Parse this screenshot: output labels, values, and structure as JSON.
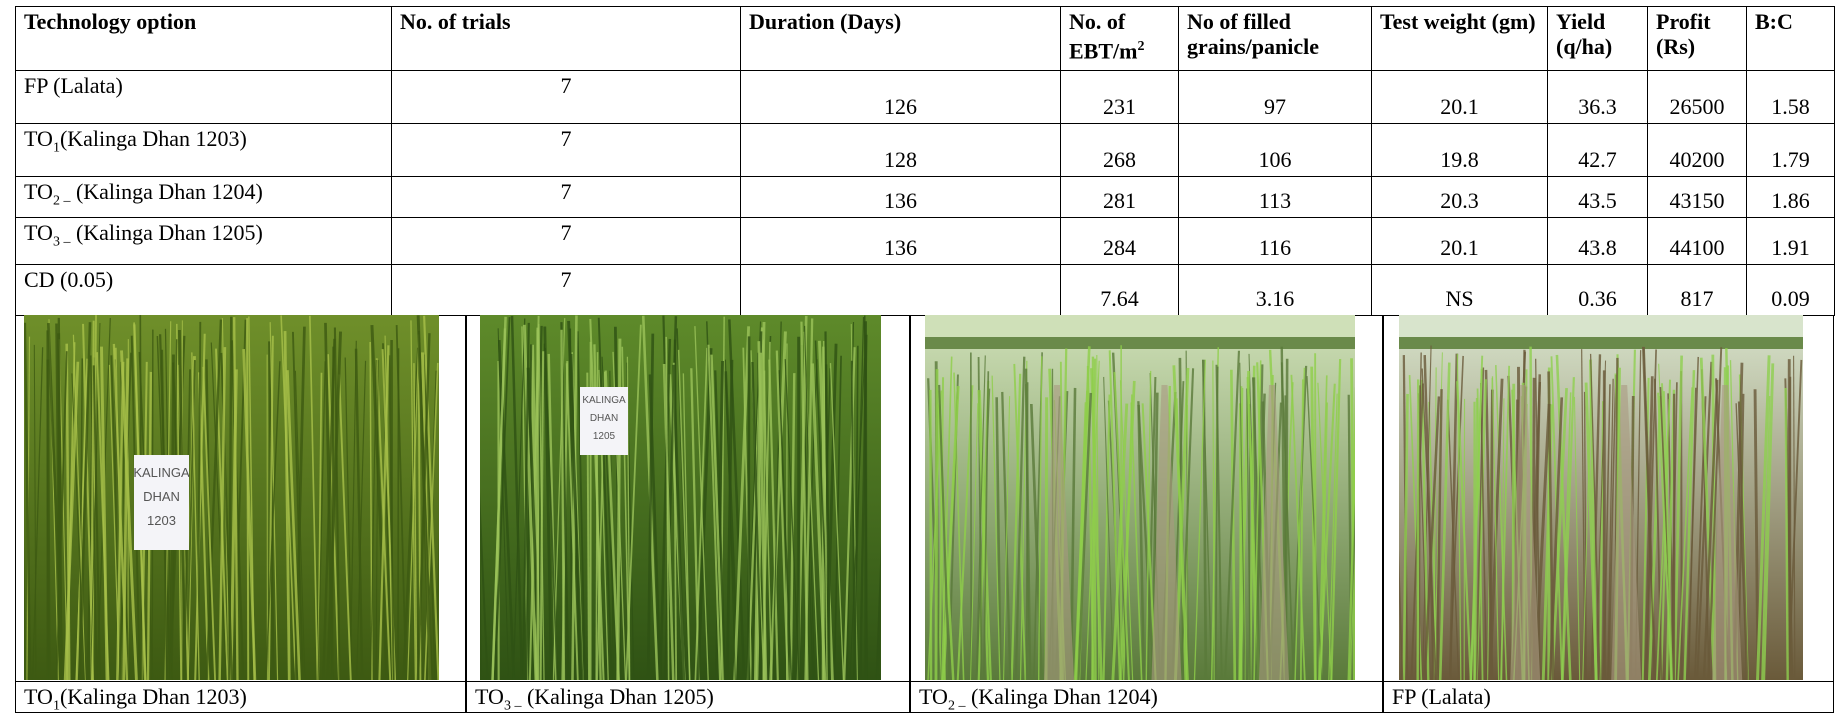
{
  "table": {
    "header": [
      "Technology option",
      "No. of trials",
      "Duration (Days)",
      {
        "text": "No. of EBT/m",
        "sup": "2"
      },
      "No of filled grains/panicle",
      "Test weight (gm)",
      "Yield (q/ha)",
      "Profit (Rs)",
      "B:C"
    ],
    "rows": [
      [
        "FP (Lalata)",
        7,
        126,
        231,
        97,
        20.1,
        36.3,
        26500,
        1.58
      ],
      [
        {
          "text": "TO",
          "sub": "1",
          "tail": "(Kalinga Dhan 1203)"
        },
        7,
        128,
        268,
        106,
        19.8,
        42.7,
        40200,
        1.79
      ],
      [
        {
          "text": "TO",
          "sub": "2 –",
          "tail": " (Kalinga Dhan 1204)"
        },
        7,
        136,
        281,
        113,
        20.3,
        43.5,
        43150,
        1.86
      ],
      [
        {
          "text": "TO",
          "sub": "3 –",
          "tail": " (Kalinga Dhan 1205)"
        },
        7,
        136,
        284,
        116,
        20.1,
        43.8,
        44100,
        1.91
      ],
      [
        "CD (0.05)",
        7,
        null,
        7.64,
        3.16,
        "NS",
        0.36,
        817,
        0.09
      ]
    ]
  },
  "photos": [
    {
      "caption": {
        "text": "TO",
        "sub": "1",
        "tail": "(Kalinga Dhan 1203)"
      },
      "sign": [
        "KALINGA",
        "DHAN",
        "1203"
      ]
    },
    {
      "caption": {
        "text": "TO",
        "sub": "3 –",
        "tail": " (Kalinga Dhan 1205)"
      },
      "sign": [
        "KALINGA",
        "DHAN",
        "1205"
      ]
    },
    {
      "caption": {
        "text": "TO",
        "sub": "2 –",
        "tail": " (Kalinga Dhan 1204)"
      }
    },
    {
      "caption": "FP (Lalata)"
    }
  ]
}
